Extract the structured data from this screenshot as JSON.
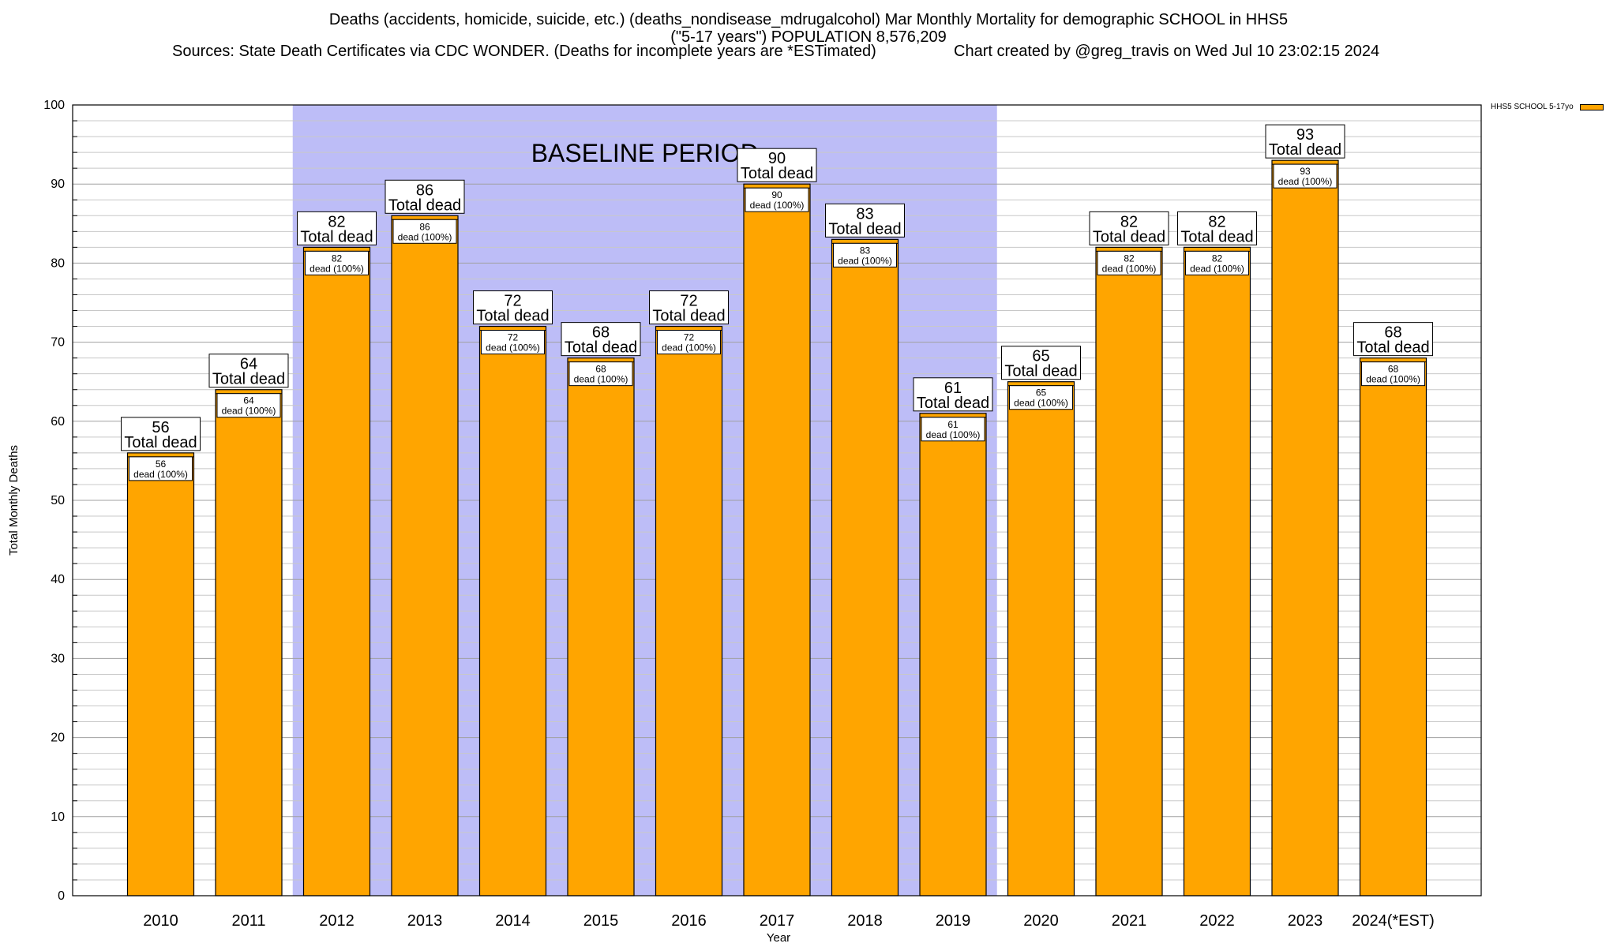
{
  "title": {
    "line1": "Deaths (accidents, homicide, suicide, etc.) (deaths_nondisease_mdrugalcohol) Mar Monthly Mortality for demographic SCHOOL in HHS5",
    "line2": "(\"5-17 years\") POPULATION 8,576,209",
    "sources": "Sources: State Death Certificates via CDC WONDER. (Deaths for incomplete years are *ESTimated)",
    "credit": "Chart created by @greg_travis on Wed Jul 10 23:02:15 2024"
  },
  "legend": {
    "label": "HHS5 SCHOOL 5-17yo"
  },
  "colors": {
    "bar": "#FFA500",
    "baseline": "#BDBDF7",
    "grid": "#c8c8c8"
  },
  "chart_data": {
    "type": "bar",
    "categories": [
      "2010",
      "2011",
      "2012",
      "2013",
      "2014",
      "2015",
      "2016",
      "2017",
      "2018",
      "2019",
      "2020",
      "2021",
      "2022",
      "2023",
      "2024(*EST)"
    ],
    "series": [
      {
        "name": "HHS5 SCHOOL 5-17yo",
        "values": [
          56,
          64,
          82,
          86,
          72,
          68,
          72,
          90,
          83,
          61,
          65,
          82,
          82,
          93,
          68
        ]
      }
    ],
    "top_label_suffix": "Total dead",
    "inner_label_suffix": "dead (100%)",
    "xlabel": "Year",
    "ylabel": "Total Monthly Deaths",
    "ylim": [
      0,
      100
    ],
    "yticks": [
      0,
      10,
      20,
      30,
      40,
      50,
      60,
      70,
      80,
      90,
      100
    ],
    "minor_tick_step": 2,
    "grid": true,
    "legend_position": "top-right",
    "baseline_period": {
      "label": "BASELINE PERIOD",
      "from": "2012",
      "to": "2019"
    }
  }
}
